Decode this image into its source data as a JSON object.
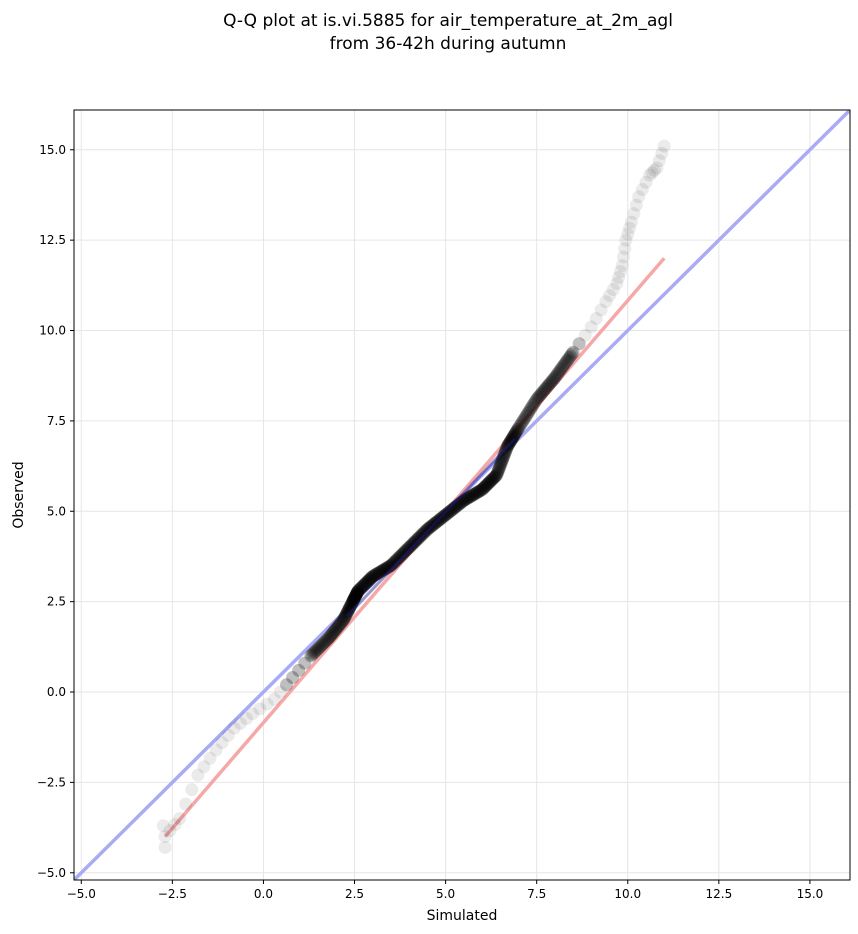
{
  "chart_data": {
    "type": "scatter",
    "title": "Q-Q plot at is.vi.5885 for air_temperature_at_2m_agl",
    "subtitle": "from 36-42h during autumn",
    "xlabel": "Simulated",
    "ylabel": "Observed",
    "xlim": [
      -5.2,
      16.1
    ],
    "ylim": [
      -5.2,
      16.1
    ],
    "grid": true,
    "x_ticks": [
      -5.0,
      -2.5,
      0.0,
      2.5,
      5.0,
      7.5,
      10.0,
      12.5,
      15.0
    ],
    "y_ticks": [
      -5.0,
      -2.5,
      0.0,
      2.5,
      5.0,
      7.5,
      10.0,
      12.5,
      15.0
    ],
    "x_tick_labels": [
      "−5.0",
      "−2.5",
      "0.0",
      "2.5",
      "5.0",
      "7.5",
      "10.0",
      "12.5",
      "15.0"
    ],
    "y_tick_labels": [
      "−5.0",
      "−2.5",
      "0.0",
      "2.5",
      "5.0",
      "7.5",
      "10.0",
      "12.5",
      "15.0"
    ],
    "colors": {
      "identity_line": "#aaaaf5",
      "fit_line": "#f5a8a8",
      "points": "#000000",
      "inner_quantile_overlay": "#1a1a8c",
      "grid": "#e6e6e6"
    },
    "identity_line": {
      "x": [
        -5.2,
        16.1
      ],
      "y": [
        -5.2,
        16.1
      ]
    },
    "fit_line": {
      "x": [
        -2.7,
        11.0
      ],
      "y": [
        -4.0,
        12.0
      ]
    },
    "quantile_curve": {
      "x": [
        -2.7,
        -2.3,
        -1.8,
        -1.3,
        -0.8,
        -0.3,
        0.3,
        0.8,
        1.3,
        1.8,
        2.2,
        2.45,
        2.6,
        3.0,
        3.5,
        4.0,
        4.5,
        5.0,
        5.5,
        6.0,
        6.4,
        6.7,
        7.0,
        7.5,
        8.0,
        8.5,
        9.0,
        9.4,
        9.7,
        9.85,
        9.95,
        10.1,
        10.3,
        10.6,
        10.8,
        11.0
      ],
      "y": [
        -4.0,
        -3.5,
        -2.3,
        -1.6,
        -1.0,
        -0.6,
        -0.2,
        0.4,
        1.0,
        1.5,
        2.0,
        2.5,
        2.8,
        3.2,
        3.5,
        4.0,
        4.5,
        4.9,
        5.3,
        5.6,
        6.0,
        6.8,
        7.3,
        8.1,
        8.7,
        9.4,
        10.1,
        10.8,
        11.3,
        11.8,
        12.5,
        13.0,
        13.7,
        14.3,
        14.5,
        15.1
      ]
    },
    "inner_quantile_range": {
      "x": [
        2.3,
        6.9
      ],
      "y": [
        2.1,
        7.0
      ]
    },
    "outer_quantile_range": {
      "x": [
        0.6,
        8.8
      ],
      "y": [
        -0.3,
        9.6
      ]
    }
  }
}
